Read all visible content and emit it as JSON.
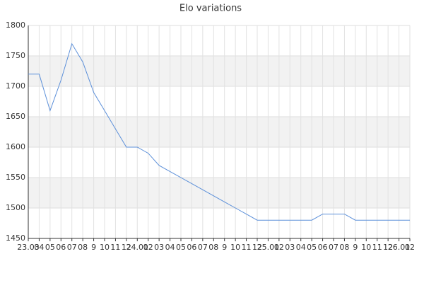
{
  "chart_data": {
    "type": "line",
    "title": "Elo variations",
    "categories": [
      "23.03",
      "04",
      "05",
      "06",
      "07",
      "08",
      "9",
      "10",
      "11",
      "12",
      "24.01",
      "02",
      "03",
      "04",
      "05",
      "06",
      "07",
      "08",
      "9",
      "10",
      "11",
      "12",
      "25.01",
      "02",
      "03",
      "04",
      "05",
      "06",
      "07",
      "08",
      "9",
      "10",
      "11",
      "12",
      "26.01",
      "02"
    ],
    "series": [
      {
        "name": "Elo",
        "color": "#5b8fd9",
        "values": [
          1720,
          1720,
          1660,
          1710,
          1770,
          1740,
          1690,
          1660,
          1630,
          1600,
          1600,
          1590,
          1570,
          1560,
          1550,
          1540,
          1530,
          1520,
          1510,
          1500,
          1490,
          1480,
          1480,
          1480,
          1480,
          1480,
          1480,
          1490,
          1490,
          1490,
          1480,
          1480,
          1480,
          1480,
          1480,
          1480
        ]
      }
    ],
    "ylim": [
      1450,
      1800
    ],
    "yticks": [
      1450,
      1500,
      1550,
      1600,
      1650,
      1700,
      1750,
      1800
    ],
    "grid": true
  }
}
